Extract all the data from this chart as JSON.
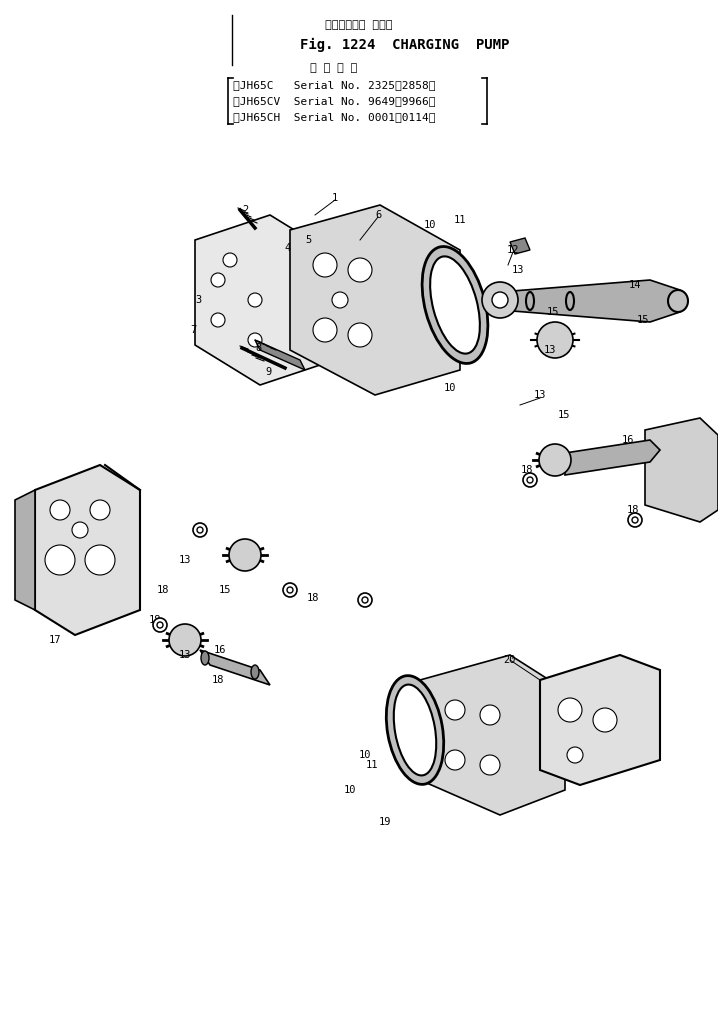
{
  "title_jp": "チャージング ポンプ",
  "title_en": "Fig. 1224  CHARGING  PUMP",
  "subtitle_jp": "適 用 号 機",
  "model_lines": [
    "（JH65C   Serial No. 2325～2858）",
    "（JH65CV  Serial No. 9649～9966）",
    "（JH65CH  Serial No. 0001～0114）"
  ],
  "bg_color": "#ffffff",
  "line_color": "#000000",
  "fig_width": 7.18,
  "fig_height": 10.15,
  "dpi": 100
}
